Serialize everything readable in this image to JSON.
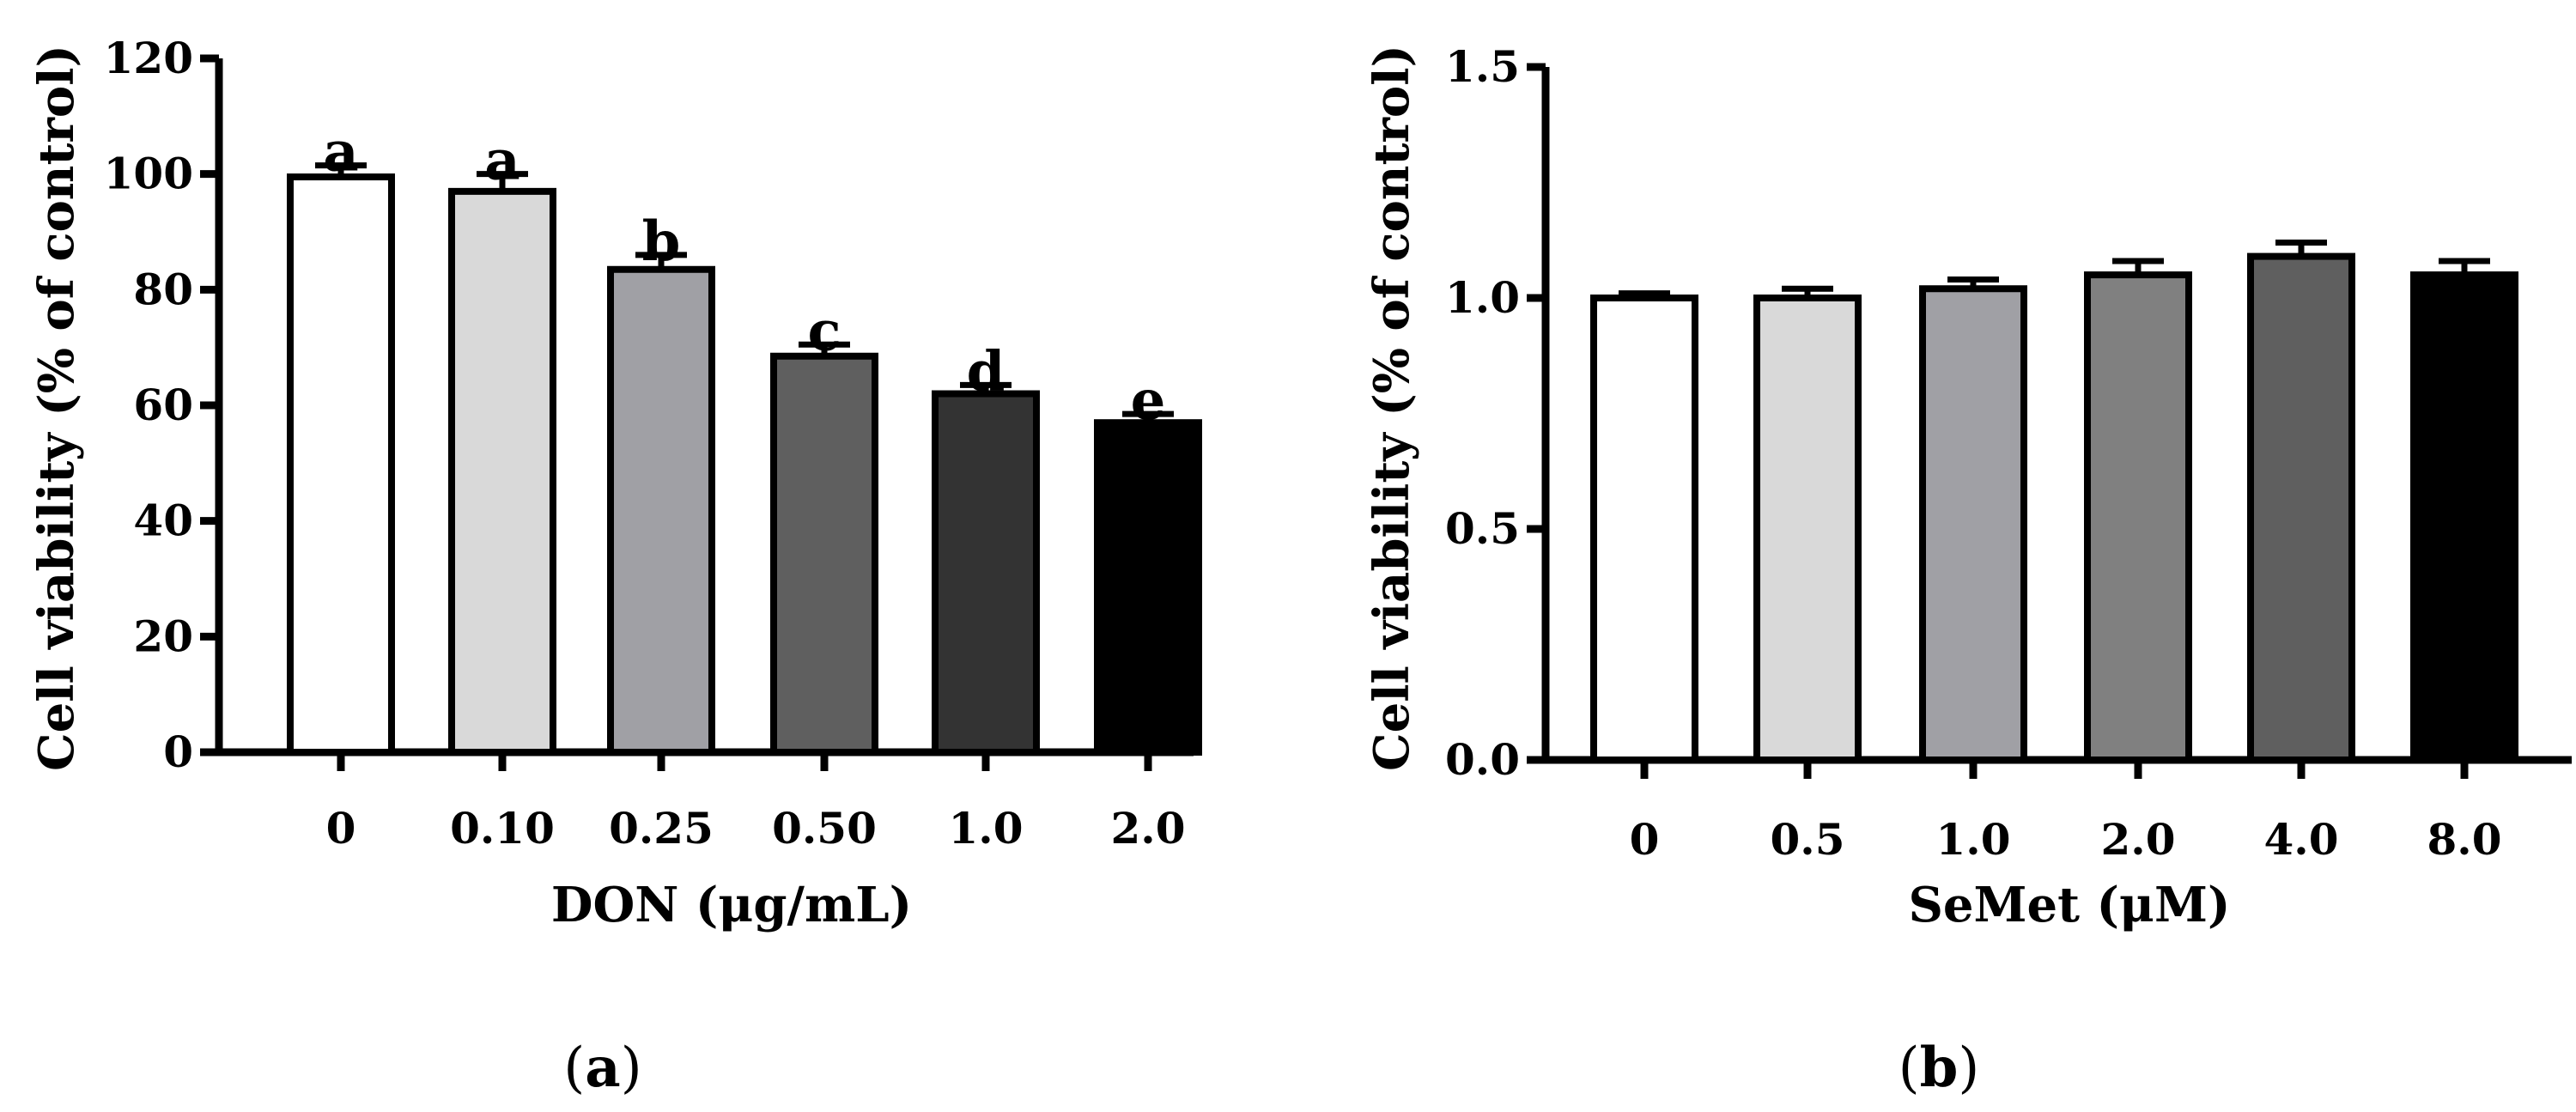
{
  "chart_data": [
    {
      "type": "bar",
      "panel_label": "a",
      "title": "",
      "xlabel": "DON (μg/mL)",
      "ylabel": "Cell viability (% of control)",
      "ylim": [
        0,
        120
      ],
      "yticks": [
        0,
        20,
        40,
        60,
        80,
        100,
        120
      ],
      "ytick_labels": [
        "0",
        "20",
        "40",
        "60",
        "80",
        "100",
        "120"
      ],
      "categories": [
        "0",
        "0.10",
        "0.25",
        "0.50",
        "1.0",
        "2.0"
      ],
      "values": [
        99.5,
        97,
        83.5,
        68.5,
        62,
        57
      ],
      "errors": [
        2,
        3,
        2.5,
        2,
        1.5,
        1.5
      ],
      "significance": [
        "a",
        "a",
        "b",
        "c",
        "d",
        "e"
      ],
      "fills": [
        "#ffffff",
        "#d9d9d9",
        "#a0a0a5",
        "#5f5f5f",
        "#333333",
        "#000000"
      ]
    },
    {
      "type": "bar",
      "panel_label": "b",
      "title": "",
      "xlabel": "SeMet (μM)",
      "ylabel": "Cell viability (% of control)",
      "ylim": [
        0,
        1.5
      ],
      "yticks": [
        0,
        0.5,
        1.0,
        1.5
      ],
      "ytick_labels": [
        "0.0",
        "0.5",
        "1.0",
        "1.5"
      ],
      "categories": [
        "0",
        "0.5",
        "1.0",
        "2.0",
        "4.0",
        "8.0"
      ],
      "values": [
        1.0,
        1.0,
        1.02,
        1.05,
        1.09,
        1.05
      ],
      "errors": [
        0.01,
        0.02,
        0.02,
        0.03,
        0.03,
        0.03
      ],
      "significance": [],
      "fills": [
        "#ffffff",
        "#d9d9d9",
        "#a0a0a5",
        "#808080",
        "#5f5f5f",
        "#000000"
      ]
    }
  ]
}
